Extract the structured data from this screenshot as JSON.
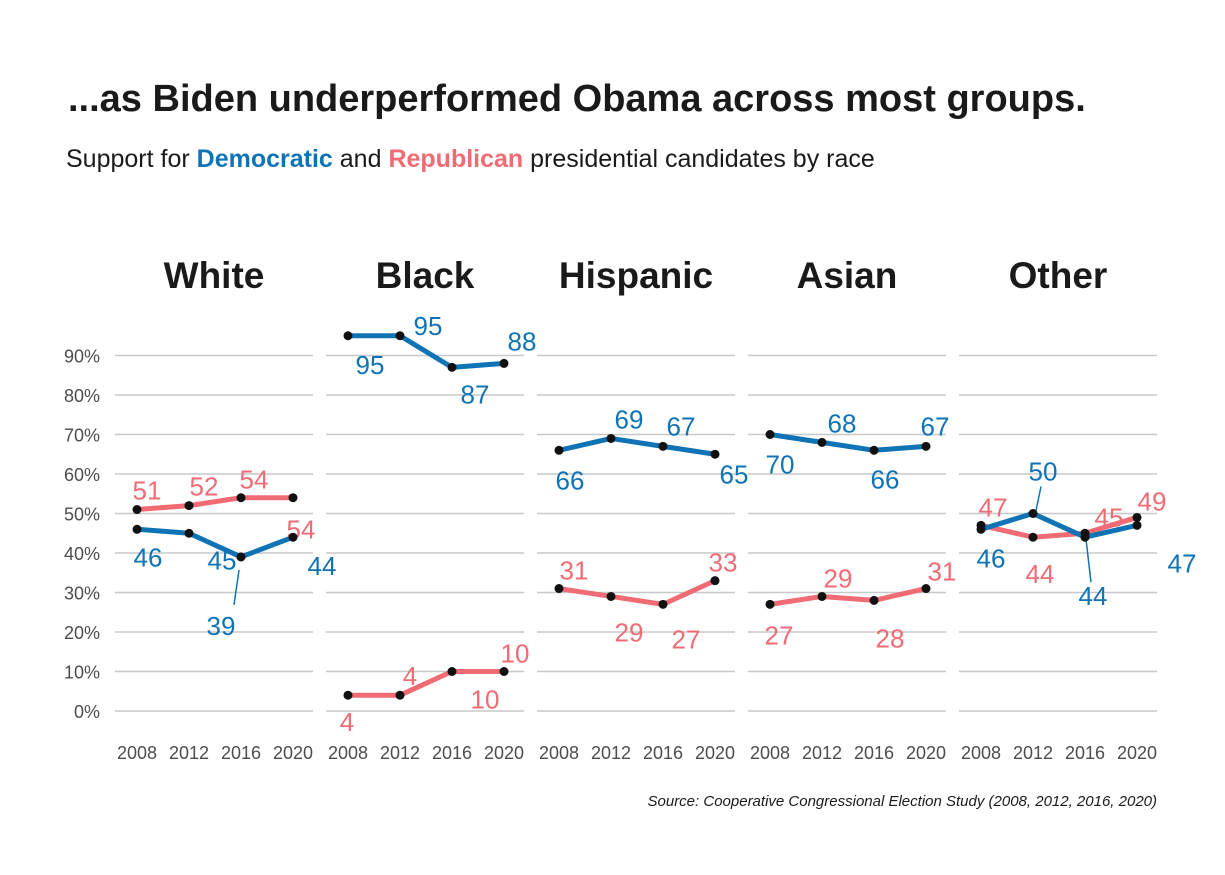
{
  "title": "...as Biden underperformed Obama across most groups.",
  "subtitle": {
    "before": "Support for",
    "dem": "Democratic",
    "mid": "and",
    "rep": "Republican",
    "after": "presidential candidates by race"
  },
  "source": "Source: Cooperative Congressional Election Study (2008, 2012, 2016, 2020)",
  "colors": {
    "democratic": "#0f73b6",
    "republican": "#f06b74",
    "point": "#111111",
    "grid": "#c8c8c8",
    "axis_text": "#4d4d4d",
    "title_text": "#1a1a1a"
  },
  "chart_data": {
    "type": "line",
    "facet_by": "race",
    "x": [
      "2008",
      "2012",
      "2016",
      "2020"
    ],
    "y_ticks": [
      "0%",
      "10%",
      "20%",
      "30%",
      "40%",
      "50%",
      "60%",
      "70%",
      "80%",
      "90%"
    ],
    "ylim": [
      0,
      95
    ],
    "grid": true,
    "panels": [
      {
        "label": "White",
        "series": [
          {
            "name": "Democratic",
            "values": [
              46,
              45,
              39,
              44
            ]
          },
          {
            "name": "Republican",
            "values": [
              51,
              52,
              54,
              54
            ]
          }
        ]
      },
      {
        "label": "Black",
        "series": [
          {
            "name": "Democratic",
            "values": [
              95,
              95,
              87,
              88
            ]
          },
          {
            "name": "Republican",
            "values": [
              4,
              4,
              10,
              10
            ]
          }
        ]
      },
      {
        "label": "Hispanic",
        "series": [
          {
            "name": "Democratic",
            "values": [
              66,
              69,
              67,
              65
            ]
          },
          {
            "name": "Republican",
            "values": [
              31,
              29,
              27,
              33
            ]
          }
        ]
      },
      {
        "label": "Asian",
        "series": [
          {
            "name": "Democratic",
            "values": [
              70,
              68,
              66,
              67
            ]
          },
          {
            "name": "Republican",
            "values": [
              27,
              29,
              28,
              31
            ]
          }
        ]
      },
      {
        "label": "Other",
        "series": [
          {
            "name": "Democratic",
            "values": [
              46,
              50,
              44,
              47
            ]
          },
          {
            "name": "Republican",
            "values": [
              47,
              44,
              45,
              49
            ]
          }
        ]
      }
    ]
  }
}
